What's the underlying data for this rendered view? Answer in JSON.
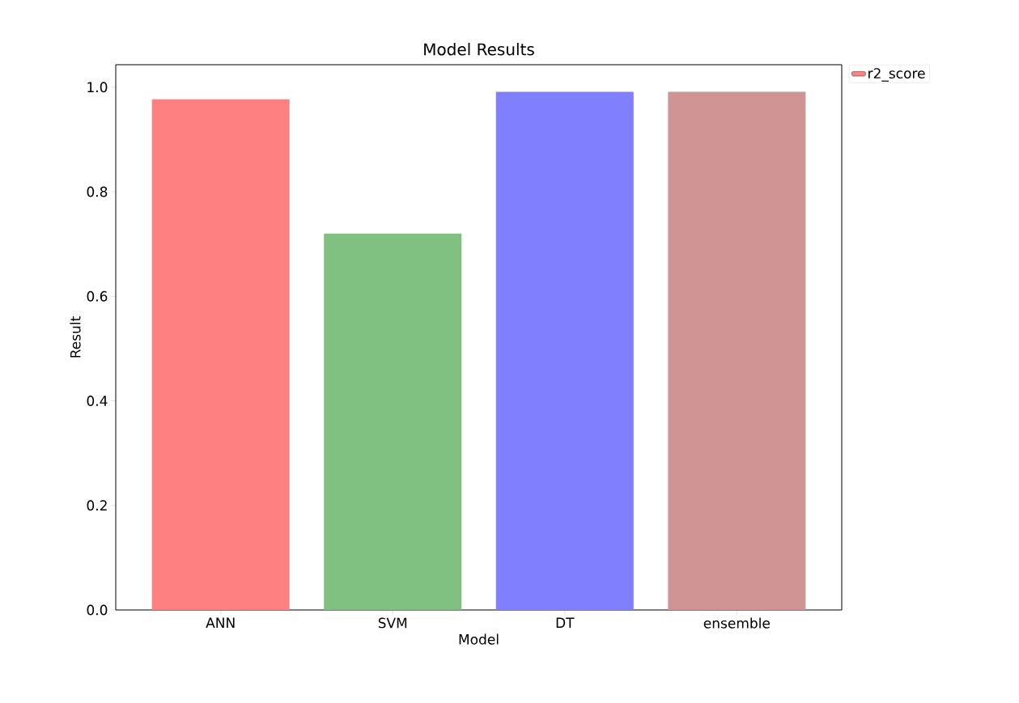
{
  "chart_data": {
    "type": "bar",
    "title": "Model Results",
    "xlabel": "Model",
    "ylabel": "Result",
    "categories": [
      "ANN",
      "SVM",
      "DT",
      "ensemble"
    ],
    "series": [
      {
        "name": "r2_score",
        "color": "#ff8080",
        "colors": [
          "#ff8080",
          "#80c080",
          "#8080ff",
          "#d09494"
        ],
        "values": [
          0.977,
          0.72,
          0.991,
          0.991
        ]
      }
    ],
    "ylim": [
      0,
      1.043
    ],
    "yticks": [
      {
        "value": 0,
        "label": "0.0"
      },
      0.2,
      0.4,
      0.6,
      0.8,
      {
        "value": 1,
        "label": "1.0"
      }
    ],
    "legend": "top right"
  }
}
